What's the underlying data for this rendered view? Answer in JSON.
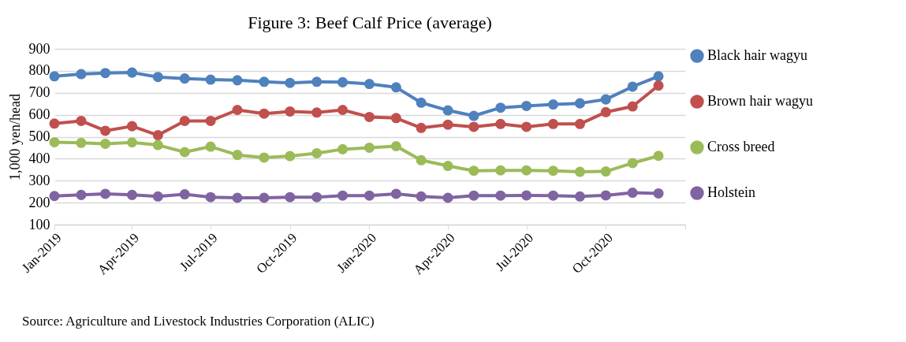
{
  "chart_data": {
    "type": "line",
    "title": "Figure 3: Beef Calf Price (average)",
    "ylabel": "1,000 yen/head",
    "x": [
      "2019-01",
      "2019-02",
      "2019-03",
      "2019-04",
      "2019-05",
      "2019-06",
      "2019-07",
      "2019-08",
      "2019-09",
      "2019-10",
      "2019-11",
      "2019-12",
      "2020-01",
      "2020-02",
      "2020-03",
      "2020-04",
      "2020-05",
      "2020-06",
      "2020-07",
      "2020-08",
      "2020-09",
      "2020-10",
      "2020-11",
      "2020-12"
    ],
    "xlim": [
      "2019-01",
      "2021-01"
    ],
    "xticks": [
      {
        "value": "2019-01",
        "label": "Jan-2019"
      },
      {
        "value": "2019-04",
        "label": "Apr-2019"
      },
      {
        "value": "2019-07",
        "label": "Jul-2019"
      },
      {
        "value": "2019-10",
        "label": "Oct-2019"
      },
      {
        "value": "2020-01",
        "label": "Jan-2020"
      },
      {
        "value": "2020-04",
        "label": "Apr-2020"
      },
      {
        "value": "2020-07",
        "label": "Jul-2020"
      },
      {
        "value": "2020-10",
        "label": "Oct-2020"
      },
      {
        "value": "2021-01",
        "label": null
      }
    ],
    "ylim": [
      100,
      900
    ],
    "yticks": [
      100,
      200,
      300,
      400,
      500,
      600,
      700,
      800,
      900
    ],
    "series": [
      {
        "name": "Black hair wagyu",
        "color": "#4f81bd",
        "values": [
          775,
          785,
          790,
          792,
          772,
          765,
          760,
          757,
          750,
          745,
          750,
          748,
          740,
          725,
          655,
          620,
          595,
          632,
          640,
          647,
          652,
          670,
          728,
          775
        ]
      },
      {
        "name": "Brown hair wagyu",
        "color": "#c0504d",
        "values": [
          560,
          572,
          527,
          548,
          507,
          572,
          572,
          622,
          605,
          615,
          610,
          622,
          590,
          585,
          540,
          555,
          545,
          558,
          545,
          558,
          558,
          612,
          638,
          733
        ]
      },
      {
        "name": "Cross breed",
        "color": "#9bbb59",
        "values": [
          475,
          472,
          468,
          474,
          462,
          430,
          455,
          417,
          405,
          412,
          425,
          443,
          450,
          457,
          393,
          367,
          345,
          347,
          347,
          345,
          340,
          342,
          380,
          413
        ]
      },
      {
        "name": "Holstein",
        "color": "#8064a2",
        "values": [
          230,
          235,
          240,
          235,
          228,
          238,
          225,
          222,
          222,
          225,
          225,
          232,
          232,
          240,
          228,
          222,
          232,
          232,
          233,
          232,
          228,
          233,
          245,
          242
        ]
      }
    ],
    "grid": "y",
    "legend": "right",
    "marker": "circle",
    "line_style": "solid",
    "annotations": [
      "Source: Agriculture and Livestock Industries Corporation (ALIC)"
    ]
  }
}
